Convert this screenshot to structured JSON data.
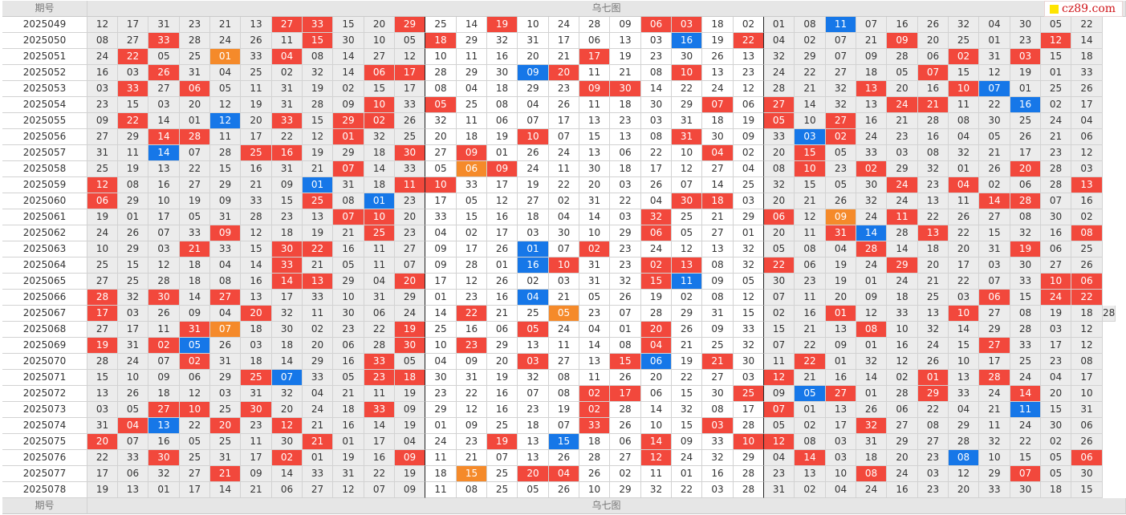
{
  "header": {
    "period_label": "期号",
    "chart_title": "乌七图"
  },
  "footer": {
    "period_label": "期号",
    "chart_title": "乌七图"
  },
  "logo": {
    "text": "cz89.com",
    "accent": "#ffe400"
  },
  "colors": {
    "red": "#f2483c",
    "blue": "#1677e8",
    "orange": "#f58a2a",
    "gray": "#ececec",
    "separator": "#222222"
  },
  "legend_codes": {
    "r": "red",
    "b": "blue",
    "o": "orange",
    "g": "gray"
  },
  "rows": [
    [
      "2025049",
      "12 17 31 23 21 13 27r 33r 15 20 29r 25 14 19r 10 24 28 09 06r 03r 18 02 01 08 11b 07 16 26 32 04 30 05 22"
    ],
    [
      "2025050",
      "08 27 33r 28 24 26 11 15r 30 10 05 18r 29 32 31 17 06 13 03 16b 19 22r 04 02 07 21 09r 20 25 01 23 12r 14"
    ],
    [
      "2025051",
      "24 22r 05 25 01o 33 04r 08 14 27 12 10 11 16 20 21 17r 19 23 30 26 13 32 29 07 09 28 06 02r 31 03r 15 18"
    ],
    [
      "2025052",
      "16 03 26r 31 04 25 02 32 14 06r 17r 28 29 30 09b 20r 11 21 08 10r 13 23 24 22 27 18 05 07r 15 12 19 01 33"
    ],
    [
      "2025053",
      "03 33r 27 06r 05 11 31 19 02 15 17 08 04 18 29 23 09r 30r 14 22 24 12 28 21 32 13r 20 16 10r 07b 01 25 26"
    ],
    [
      "2025054",
      "23 15 03 20 12 19 31 28 09 10r 33 05r 25 08 04 26 11 18 30 29 07r 06 27r 14 32 13 24r 21r 11 22 16b 02 17"
    ],
    [
      "2025055",
      "09 22r 14 01 12b 20 33r 15 29r 02r 26 32 11 06 07 17 13 23 03 31 18 19 05r 10 27r 16 21 28 08 30 25 24 04"
    ],
    [
      "2025056",
      "27 29 14r 28r 11 17 22 12 01r 32 25 20 18 19 10r 07 15 13 08 31r 30 09 33 03b 02r 24 23 16 04 05 26 21 06"
    ],
    [
      "2025057",
      "31 11 14b 07 28 25r 16r 19 29 18 30r 27 09r 01 26 24 13 06 22 10 04r 02 20 15r 05 33 03 08 32 21 17 23 12"
    ],
    [
      "2025058",
      "25 19 13 22 15 16 31 21 07r 14 33 05 06o 09r 24 11 30 18 17 12 27 04 08 10r 23 02r 29 32 01 26 20r 28 03"
    ],
    [
      "2025059",
      "12r 08 16 27 29 21 09 01b 31 18 11r 10r 33 17 19 22 20 03 26 07 14 25 32 15 05 30 24r 23 04r 02 06 28 13r"
    ],
    [
      "2025060",
      "06r 29 10 19 09 33 15 25r 08 01b 23 17 05 12 27 02 31 22 04 30r 18r 03 20 21 26 32 24 13 11 14r 28r 07 16"
    ],
    [
      "2025061",
      "19 01 17 05 31 28 23 13 07r 10r 20 33 15 16 18 04 14 03 32r 25 21 29 06r 12 09o 24 11r 22 26 27 08 30 02"
    ],
    [
      "2025062",
      "24 26 07 33 09r 12 18 19 21 25r 23 04 02 17 03 30 10 29 06r 05 27 01 20 11 31r 14b 28 13r 22 15 32 16 08r"
    ],
    [
      "2025063",
      "10 29 03 21r 33 15 30r 22r 16 11 27 09 17 26 01b 07 02r 23 24 12 13 32 05 08 04 28r 14 18 20 31 19r 06 25"
    ],
    [
      "2025064",
      "25 15 12 18 04 14 33r 21 05 11 07 09 28 01 16b 10r 31 23 02r 13r 08 32 22r 06 19 24 29r 20 17 03 30 27 26"
    ],
    [
      "2025065",
      "27 25 28 18 08 16 14r 13r 29 04 20r 17 12 26 02 03 31 32 15r 11b 09 05 30 23 19 01 24 21 22 07 33 10r 06r"
    ],
    [
      "2025066",
      "28r 32 30r 14 27r 13 17 33 10 31 29 01 23 16 04b 21 05 26 19 02 08 12 07 11 20 09 18 25 03 06r 15 24r 22r"
    ],
    [
      "2025067",
      "17r 03 26 09 04 20r 32 11 30 06 24 14 22r 21 25 05o 23 07 28 29 31 15 02 16 01r 12 33 13 10r 27 08 19 18 28"
    ],
    [
      "2025068",
      "27 17 11 31r 07o 18 30 02 23 22 19r 25 16 06 05r 24 04 01 20r 26 09 33 15 21 13 08r 10 32 14 29 28 03 12"
    ],
    [
      "2025069",
      "19r 31 02r 05b 26 03 18 20 06 28 30r 10 23r 29 13 11 14 08 04r 21 25 32 07 22 09 01 16 24 15 27r 33 17 12"
    ],
    [
      "2025070",
      "28 24 07 02r 31 18 14 29 16 33r 05 04 09 20 03r 27 13 15r 06b 19 21r 30 11 22r 01 32 12 26 10 17 25 23 08"
    ],
    [
      "2025071",
      "15 10 09 06 29 25r 07b 33 05 23r 18r 30 31 19 32 08 11 26 20 22 27 03 12r 21 16 14 02 01r 13 28r 24 04 17"
    ],
    [
      "2025072",
      "13 26 18 12 03 31 32 04 21 11 19 23 22 16 07 08 02r 17r 06 15 30 25r 09 05b 27r 01 28 29r 33 24 14r 20 10"
    ],
    [
      "2025073",
      "03 05 27r 10r 25 30r 20 24 18 33r 09 29 12 16 23 19 02r 28 14 32 08 17 07r 01 13 26 06 22 04 21 11b 15 31"
    ],
    [
      "2025074",
      "31 04r 13b 22 20r 23 12r 21 16 14 19 01 09 25 18 07 33r 26 10 15 03r 28 05 02 17 32r 27 08 29 11 24 30 06"
    ],
    [
      "2025075",
      "20r 07 16 05 25 11 30 21r 01 17 04 24 23 19r 13 15b 18 06 14r 09 33 10r 12r 08 03 31 29 27 28 32 22 02 26"
    ],
    [
      "2025076",
      "22 33 30r 25 31 17 02r 01 19 16 09r 11 21 07 13 26 28 27 12r 24 32 29 04 14r 03 18 20 23 08b 10 15 05 06r"
    ],
    [
      "2025077",
      "17 06 32 27 21r 09 14 33 31 22 19 18 15o 25 20r 04r 26 02 11 01 16 28 23 13 10 08r 24 03 12 29 07r 05 30"
    ],
    [
      "2025078",
      "19 13 01 17 14 21 06 27 12 07 09 11 08 25 05 26 10 29 32 22 03 28 31 02 04 24 16 23 20 33 30 18 15"
    ]
  ]
}
